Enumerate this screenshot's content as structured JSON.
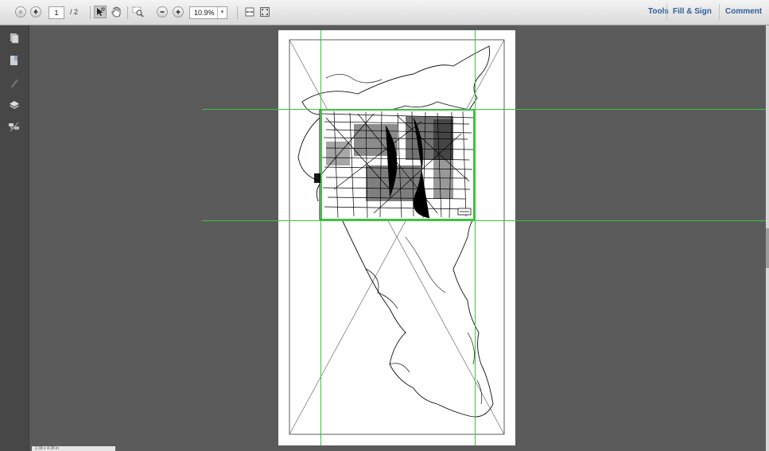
{
  "toolbar": {
    "page_current": "1",
    "page_total": "/ 2",
    "zoom": "10.9%",
    "zoom_arrow": "▾",
    "prev_page_icon": "arrow-up-icon",
    "next_page_icon": "arrow-down-icon",
    "select_tool_icon": "select-arrow-icon",
    "hand_tool_icon": "hand-icon",
    "marquee_zoom_icon": "marquee-zoom-icon",
    "zoom_out_icon": "minus-icon",
    "zoom_in_icon": "plus-icon",
    "fit_width_icon": "fit-width-icon",
    "full_screen_icon": "full-screen-icon"
  },
  "panes": {
    "tools": "Tools",
    "fill_sign": "Fill & Sign",
    "comment": "Comment"
  },
  "nav_rail": {
    "items": [
      "page-thumbnails-icon",
      "bookmarks-icon",
      "signatures-icon",
      "layers-icon",
      "model-tree-icon"
    ]
  },
  "status": {
    "text": "2.38 x 4.38 in"
  },
  "colors": {
    "guide": "#3cc33c",
    "link_blue": "#2f5f9b",
    "canvas": "#5b5b5b"
  }
}
